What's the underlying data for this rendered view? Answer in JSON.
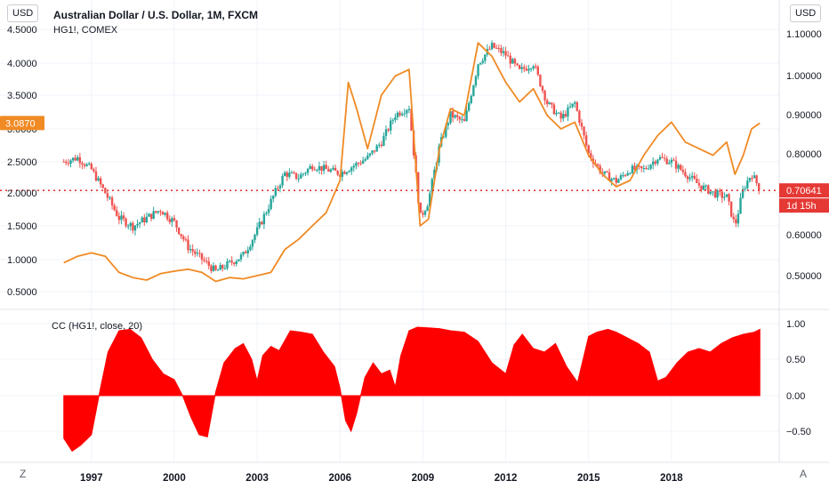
{
  "header": {
    "left_unit": "USD",
    "right_unit": "USD",
    "title": "Australian Dollar / U.S. Dollar, 1M, FXCM",
    "compare_symbol": "HG1!, COMEX",
    "indicator_label": "CC (HG1!, close, 20)"
  },
  "markers": {
    "copper_last": "3.0870",
    "aud_last": "0.70641",
    "countdown": "1d 15h"
  },
  "footer": {
    "left_button": "Z",
    "right_button": "A"
  },
  "colors": {
    "candle_up": "#26a69a",
    "candle_down": "#ef5350",
    "copper_line": "#f08a24",
    "indicator_fill": "#ff0000",
    "price_line": "#e53935"
  },
  "chart_data": [
    {
      "type": "line",
      "title": "Australian Dollar / U.S. Dollar, 1M, FXCM",
      "x_ticks": [
        "1997",
        "2000",
        "2003",
        "2006",
        "2009",
        "2012",
        "2015",
        "2018"
      ],
      "y_left_ticks": [
        "4.5000",
        "4.0000",
        "3.5000",
        "3.0000",
        "2.5000",
        "2.0000",
        "1.5000",
        "1.0000",
        "0.5000"
      ],
      "y_left_range": [
        0.3,
        4.6
      ],
      "y_right_ticks": [
        "1.10000",
        "1.00000",
        "0.90000",
        "0.80000",
        "0.70000",
        "0.60000",
        "0.50000"
      ],
      "y_right_range": [
        0.475,
        1.11
      ],
      "series": [
        {
          "name": "AUD/USD",
          "axis": "right",
          "style": "candles",
          "x": [
            1996.0,
            1996.5,
            1997.0,
            1997.5,
            1998.0,
            1998.5,
            1999.0,
            1999.5,
            2000.0,
            2000.5,
            2001.0,
            2001.5,
            2002.0,
            2002.5,
            2003.0,
            2003.5,
            2004.0,
            2004.5,
            2005.0,
            2005.5,
            2006.0,
            2006.5,
            2007.0,
            2007.5,
            2008.0,
            2008.5,
            2008.9,
            2009.2,
            2009.6,
            2010.0,
            2010.5,
            2011.0,
            2011.5,
            2012.0,
            2012.5,
            2013.0,
            2013.5,
            2014.0,
            2014.5,
            2015.0,
            2015.5,
            2016.0,
            2016.5,
            2017.0,
            2017.5,
            2018.0,
            2018.5,
            2019.0,
            2019.5,
            2020.0,
            2020.3,
            2020.6,
            2020.9,
            2021.2
          ],
          "values": [
            0.78,
            0.79,
            0.76,
            0.7,
            0.64,
            0.62,
            0.64,
            0.66,
            0.63,
            0.57,
            0.54,
            0.51,
            0.53,
            0.55,
            0.61,
            0.68,
            0.75,
            0.74,
            0.77,
            0.76,
            0.75,
            0.77,
            0.79,
            0.83,
            0.9,
            0.92,
            0.64,
            0.68,
            0.82,
            0.9,
            0.88,
            1.03,
            1.07,
            1.05,
            1.01,
            1.03,
            0.93,
            0.89,
            0.93,
            0.8,
            0.75,
            0.73,
            0.76,
            0.76,
            0.79,
            0.78,
            0.75,
            0.72,
            0.7,
            0.69,
            0.62,
            0.71,
            0.75,
            0.71
          ]
        },
        {
          "name": "HG1!, COMEX",
          "axis": "left",
          "style": "line",
          "x": [
            1996.0,
            1996.5,
            1997.0,
            1997.5,
            1998.0,
            1998.5,
            1999.0,
            1999.5,
            2000.0,
            2000.5,
            2001.0,
            2001.5,
            2002.0,
            2002.5,
            2003.0,
            2003.5,
            2004.0,
            2004.5,
            2005.0,
            2005.5,
            2006.0,
            2006.3,
            2006.6,
            2007.0,
            2007.5,
            2008.0,
            2008.5,
            2008.9,
            2009.2,
            2009.6,
            2010.0,
            2010.5,
            2011.0,
            2011.5,
            2012.0,
            2012.5,
            2013.0,
            2013.5,
            2014.0,
            2014.5,
            2015.0,
            2015.5,
            2016.0,
            2016.5,
            2017.0,
            2017.5,
            2018.0,
            2018.5,
            2019.0,
            2019.5,
            2020.0,
            2020.3,
            2020.6,
            2020.9,
            2021.2
          ],
          "values": [
            0.95,
            1.05,
            1.1,
            1.05,
            0.8,
            0.72,
            0.68,
            0.78,
            0.82,
            0.85,
            0.8,
            0.66,
            0.72,
            0.7,
            0.75,
            0.8,
            1.15,
            1.3,
            1.5,
            1.7,
            2.2,
            3.7,
            3.3,
            2.7,
            3.5,
            3.8,
            3.9,
            1.5,
            1.6,
            2.7,
            3.3,
            3.2,
            4.3,
            4.1,
            3.7,
            3.4,
            3.6,
            3.2,
            3.0,
            3.1,
            2.6,
            2.3,
            2.1,
            2.2,
            2.6,
            2.9,
            3.1,
            2.8,
            2.7,
            2.6,
            2.8,
            2.3,
            2.6,
            3.0,
            3.087
          ]
        }
      ]
    },
    {
      "type": "area",
      "title": "CC (HG1!, close, 20)",
      "x_ticks": [
        "1997",
        "2000",
        "2003",
        "2006",
        "2009",
        "2012",
        "2015",
        "2018"
      ],
      "y_ticks": [
        "1.00",
        "0.50",
        "0.00",
        "−0.50"
      ],
      "y_range": [
        -0.85,
        1.08
      ],
      "series": [
        {
          "name": "CC (HG1!, close, 20)",
          "x": [
            1996.0,
            1996.3,
            1996.6,
            1997.0,
            1997.3,
            1997.6,
            1998.0,
            1998.4,
            1998.8,
            1999.2,
            1999.6,
            2000.0,
            2000.3,
            2000.6,
            2000.9,
            2001.2,
            2001.5,
            2001.8,
            2002.2,
            2002.5,
            2002.8,
            2003.0,
            2003.2,
            2003.5,
            2003.8,
            2004.2,
            2004.6,
            2005.0,
            2005.4,
            2005.8,
            2006.0,
            2006.2,
            2006.4,
            2006.6,
            2006.9,
            2007.2,
            2007.5,
            2007.8,
            2008.0,
            2008.2,
            2008.5,
            2008.8,
            2009.2,
            2009.6,
            2010.0,
            2010.5,
            2011.0,
            2011.5,
            2012.0,
            2012.3,
            2012.6,
            2013.0,
            2013.4,
            2013.8,
            2014.2,
            2014.6,
            2015.0,
            2015.3,
            2015.7,
            2016.0,
            2016.4,
            2016.8,
            2017.2,
            2017.5,
            2017.8,
            2018.2,
            2018.6,
            2019.0,
            2019.4,
            2019.8,
            2020.2,
            2020.6,
            2021.0,
            2021.2
          ],
          "values": [
            -0.6,
            -0.78,
            -0.7,
            -0.55,
            0.05,
            0.6,
            0.9,
            0.92,
            0.8,
            0.5,
            0.3,
            0.22,
            0.0,
            -0.3,
            -0.55,
            -0.58,
            0.05,
            0.45,
            0.65,
            0.72,
            0.5,
            0.2,
            0.55,
            0.68,
            0.62,
            0.9,
            0.88,
            0.85,
            0.6,
            0.4,
            0.1,
            -0.35,
            -0.5,
            -0.25,
            0.25,
            0.45,
            0.3,
            0.35,
            0.12,
            0.55,
            0.9,
            0.95,
            0.94,
            0.93,
            0.9,
            0.88,
            0.75,
            0.45,
            0.3,
            0.7,
            0.85,
            0.65,
            0.6,
            0.72,
            0.4,
            0.18,
            0.82,
            0.88,
            0.92,
            0.88,
            0.8,
            0.72,
            0.6,
            0.2,
            0.25,
            0.45,
            0.6,
            0.65,
            0.6,
            0.72,
            0.8,
            0.85,
            0.88,
            0.92
          ]
        }
      ]
    }
  ]
}
